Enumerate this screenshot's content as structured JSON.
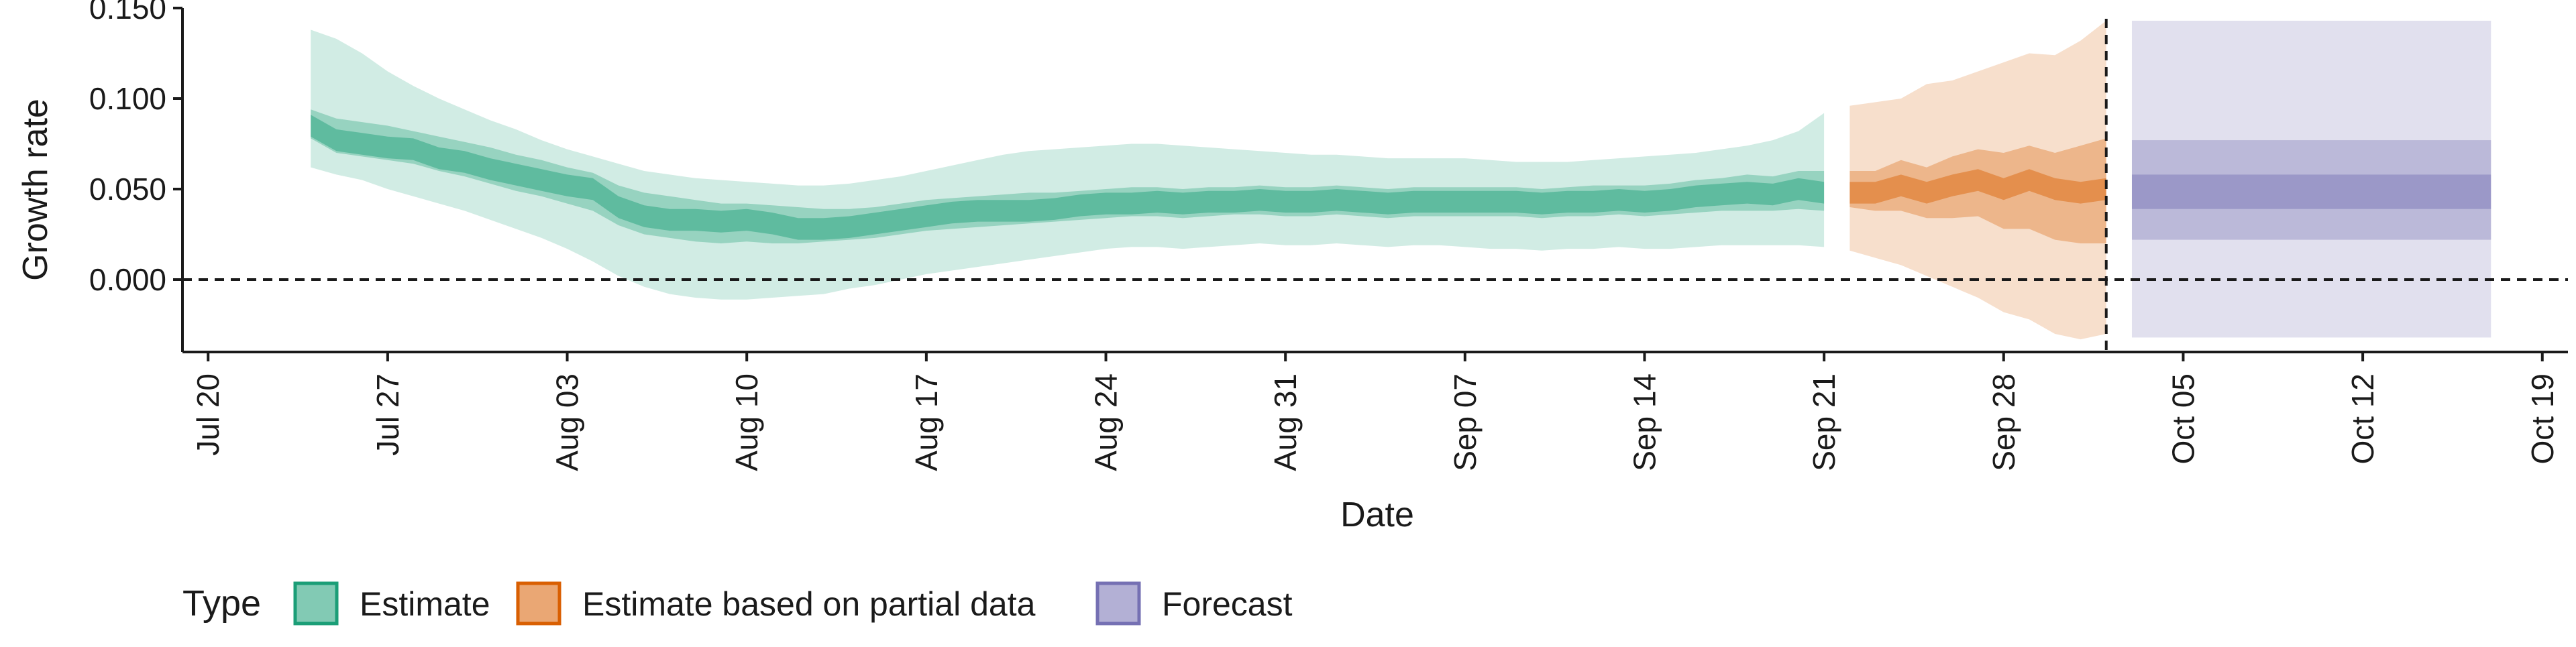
{
  "chart_data": {
    "type": "area",
    "xlabel": "Date",
    "ylabel": "Growth rate",
    "x_axis_type": "date",
    "xlim": [
      "2020-07-19",
      "2020-10-20"
    ],
    "ylim": [
      -0.04,
      0.15
    ],
    "x_ticks": [
      "2020-07-20",
      "2020-07-27",
      "2020-08-03",
      "2020-08-10",
      "2020-08-17",
      "2020-08-24",
      "2020-08-31",
      "2020-09-07",
      "2020-09-14",
      "2020-09-21",
      "2020-09-28",
      "2020-10-05",
      "2020-10-12",
      "2020-10-19"
    ],
    "x_tick_labels": [
      "Jul 20",
      "Jul 27",
      "Aug 03",
      "Aug 10",
      "Aug 17",
      "Aug 24",
      "Aug 31",
      "Sep 07",
      "Sep 14",
      "Sep 21",
      "Sep 28",
      "Oct 05",
      "Oct 12",
      "Oct 19"
    ],
    "y_ticks": [
      0.0,
      0.05,
      0.1,
      0.15
    ],
    "y_tick_labels": [
      "0.000",
      "0.050",
      "0.100",
      "0.150"
    ],
    "reference_lines": {
      "horizontal_y": 0.0,
      "vertical_x": "2020-10-02",
      "style": "dashed"
    },
    "grid": false,
    "legend": {
      "title": "Type",
      "position": "bottom-left",
      "entries": [
        {
          "label": "Estimate",
          "color": "#1b9e77"
        },
        {
          "label": "Estimate based on partial data",
          "color": "#d95f02"
        },
        {
          "label": "Forecast",
          "color": "#7570b3"
        }
      ]
    },
    "series": [
      {
        "name": "Estimate",
        "color": "#1b9e77",
        "x": [
          "2020-07-24",
          "2020-07-25",
          "2020-07-26",
          "2020-07-27",
          "2020-07-28",
          "2020-07-29",
          "2020-07-30",
          "2020-07-31",
          "2020-08-01",
          "2020-08-02",
          "2020-08-03",
          "2020-08-04",
          "2020-08-05",
          "2020-08-06",
          "2020-08-07",
          "2020-08-08",
          "2020-08-09",
          "2020-08-10",
          "2020-08-11",
          "2020-08-12",
          "2020-08-13",
          "2020-08-14",
          "2020-08-15",
          "2020-08-16",
          "2020-08-17",
          "2020-08-18",
          "2020-08-19",
          "2020-08-20",
          "2020-08-21",
          "2020-08-22",
          "2020-08-23",
          "2020-08-24",
          "2020-08-25",
          "2020-08-26",
          "2020-08-27",
          "2020-08-28",
          "2020-08-29",
          "2020-08-30",
          "2020-08-31",
          "2020-09-01",
          "2020-09-02",
          "2020-09-03",
          "2020-09-04",
          "2020-09-05",
          "2020-09-06",
          "2020-09-07",
          "2020-09-08",
          "2020-09-09",
          "2020-09-10",
          "2020-09-11",
          "2020-09-12",
          "2020-09-13",
          "2020-09-14",
          "2020-09-15",
          "2020-09-16",
          "2020-09-17",
          "2020-09-18",
          "2020-09-19",
          "2020-09-20",
          "2020-09-21"
        ],
        "median": [
          0.085,
          0.077,
          0.075,
          0.073,
          0.072,
          0.067,
          0.065,
          0.061,
          0.058,
          0.055,
          0.052,
          0.05,
          0.04,
          0.035,
          0.033,
          0.033,
          0.032,
          0.033,
          0.031,
          0.028,
          0.028,
          0.029,
          0.031,
          0.033,
          0.035,
          0.037,
          0.038,
          0.038,
          0.038,
          0.039,
          0.041,
          0.042,
          0.042,
          0.043,
          0.042,
          0.043,
          0.043,
          0.044,
          0.043,
          0.043,
          0.044,
          0.043,
          0.042,
          0.043,
          0.043,
          0.043,
          0.043,
          0.043,
          0.042,
          0.043,
          0.043,
          0.044,
          0.043,
          0.044,
          0.046,
          0.047,
          0.048,
          0.047,
          0.05,
          0.048
        ],
        "lower_50": [
          0.078,
          0.07,
          0.068,
          0.066,
          0.064,
          0.06,
          0.057,
          0.053,
          0.049,
          0.046,
          0.042,
          0.038,
          0.03,
          0.025,
          0.023,
          0.021,
          0.02,
          0.021,
          0.02,
          0.02,
          0.021,
          0.022,
          0.023,
          0.025,
          0.027,
          0.028,
          0.029,
          0.03,
          0.031,
          0.032,
          0.033,
          0.034,
          0.035,
          0.035,
          0.034,
          0.035,
          0.036,
          0.036,
          0.035,
          0.035,
          0.036,
          0.035,
          0.034,
          0.035,
          0.035,
          0.035,
          0.035,
          0.035,
          0.034,
          0.035,
          0.035,
          0.036,
          0.035,
          0.036,
          0.037,
          0.038,
          0.038,
          0.038,
          0.039,
          0.038
        ],
        "upper_50": [
          0.094,
          0.089,
          0.087,
          0.085,
          0.082,
          0.079,
          0.076,
          0.073,
          0.069,
          0.066,
          0.062,
          0.059,
          0.052,
          0.048,
          0.046,
          0.044,
          0.042,
          0.042,
          0.041,
          0.04,
          0.039,
          0.039,
          0.04,
          0.042,
          0.044,
          0.045,
          0.046,
          0.047,
          0.048,
          0.048,
          0.049,
          0.05,
          0.051,
          0.051,
          0.05,
          0.051,
          0.051,
          0.052,
          0.051,
          0.051,
          0.052,
          0.051,
          0.05,
          0.051,
          0.051,
          0.051,
          0.051,
          0.051,
          0.05,
          0.051,
          0.052,
          0.052,
          0.052,
          0.053,
          0.055,
          0.056,
          0.058,
          0.057,
          0.06,
          0.06
        ],
        "lower_90": [
          0.062,
          0.058,
          0.055,
          0.05,
          0.046,
          0.042,
          0.038,
          0.033,
          0.028,
          0.023,
          0.017,
          0.01,
          0.002,
          -0.004,
          -0.008,
          -0.01,
          -0.011,
          -0.011,
          -0.01,
          -0.009,
          -0.008,
          -0.005,
          -0.003,
          0.0,
          0.003,
          0.005,
          0.007,
          0.009,
          0.011,
          0.013,
          0.015,
          0.017,
          0.018,
          0.018,
          0.017,
          0.018,
          0.019,
          0.02,
          0.019,
          0.019,
          0.02,
          0.019,
          0.018,
          0.019,
          0.019,
          0.018,
          0.017,
          0.017,
          0.016,
          0.017,
          0.017,
          0.018,
          0.017,
          0.017,
          0.018,
          0.019,
          0.019,
          0.019,
          0.019,
          0.018
        ],
        "upper_90": [
          0.138,
          0.133,
          0.125,
          0.115,
          0.107,
          0.1,
          0.094,
          0.088,
          0.083,
          0.077,
          0.072,
          0.068,
          0.064,
          0.06,
          0.058,
          0.056,
          0.055,
          0.054,
          0.053,
          0.052,
          0.052,
          0.053,
          0.055,
          0.057,
          0.06,
          0.063,
          0.066,
          0.069,
          0.071,
          0.072,
          0.073,
          0.074,
          0.075,
          0.075,
          0.074,
          0.073,
          0.072,
          0.071,
          0.07,
          0.069,
          0.069,
          0.068,
          0.067,
          0.067,
          0.067,
          0.067,
          0.066,
          0.065,
          0.065,
          0.065,
          0.066,
          0.067,
          0.068,
          0.069,
          0.07,
          0.072,
          0.074,
          0.077,
          0.082,
          0.092
        ]
      },
      {
        "name": "Estimate based on partial data",
        "color": "#d95f02",
        "x": [
          "2020-09-22",
          "2020-09-23",
          "2020-09-24",
          "2020-09-25",
          "2020-09-26",
          "2020-09-27",
          "2020-09-28",
          "2020-09-29",
          "2020-09-30",
          "2020-10-01",
          "2020-10-02"
        ],
        "median": [
          0.048,
          0.048,
          0.052,
          0.048,
          0.052,
          0.055,
          0.05,
          0.055,
          0.05,
          0.048,
          0.05
        ],
        "lower_50": [
          0.04,
          0.038,
          0.038,
          0.034,
          0.034,
          0.035,
          0.028,
          0.028,
          0.022,
          0.02,
          0.02
        ],
        "upper_50": [
          0.06,
          0.06,
          0.066,
          0.062,
          0.068,
          0.072,
          0.07,
          0.074,
          0.07,
          0.074,
          0.078
        ],
        "lower_90": [
          0.016,
          0.012,
          0.008,
          0.002,
          -0.004,
          -0.01,
          -0.018,
          -0.022,
          -0.03,
          -0.033,
          -0.03
        ],
        "upper_90": [
          0.096,
          0.098,
          0.1,
          0.108,
          0.11,
          0.115,
          0.12,
          0.125,
          0.124,
          0.132,
          0.143
        ]
      },
      {
        "name": "Forecast",
        "color": "#7570b3",
        "x": [
          "2020-10-03",
          "2020-10-17"
        ],
        "median": [
          0.048,
          0.048
        ],
        "lower_50": [
          0.039,
          0.039
        ],
        "upper_50": [
          0.058,
          0.058
        ],
        "lower_20_band": [
          0.022,
          0.022
        ],
        "upper_20_band": [
          0.077,
          0.077
        ],
        "lower_90": [
          -0.032,
          -0.032
        ],
        "upper_90": [
          0.143,
          0.143
        ]
      }
    ]
  }
}
